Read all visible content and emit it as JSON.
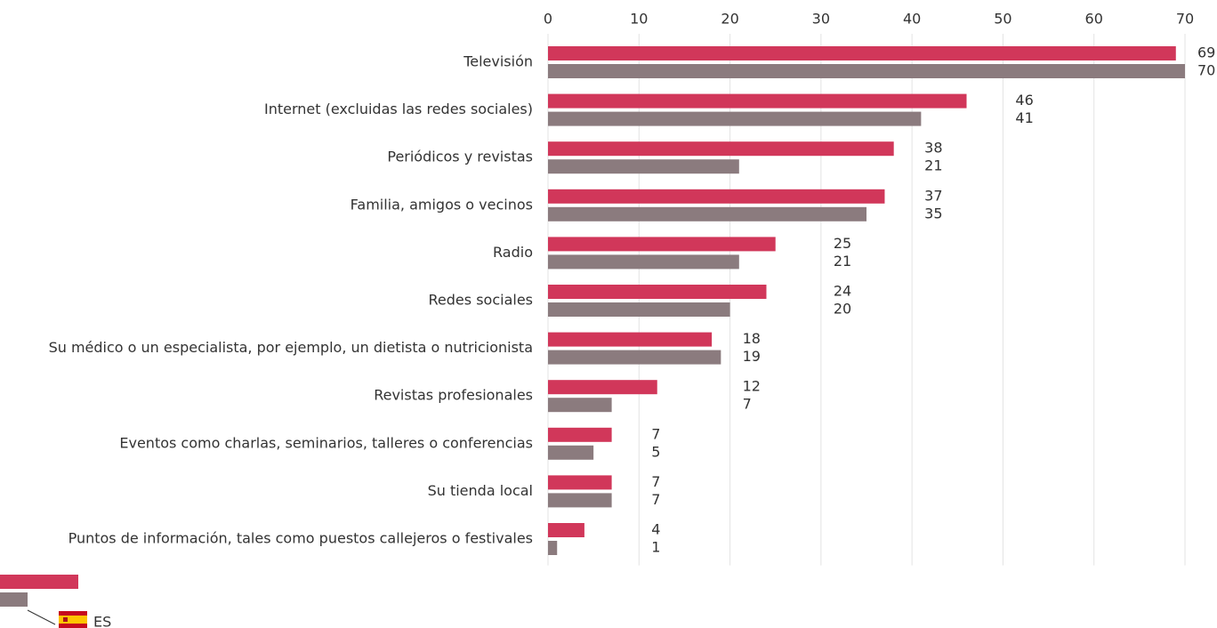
{
  "chart_data": {
    "type": "bar",
    "orientation": "horizontal",
    "categories": [
      "Televisión",
      "Internet (excluidas las redes sociales)",
      "Periódicos y revistas",
      "Familia, amigos o vecinos",
      "Radio",
      "Redes sociales",
      "Su médico o un especialista, por ejemplo, un dietista o nutricionista",
      "Revistas profesionales",
      "Eventos como charlas, seminarios, talleres o conferencias",
      "Su tienda local",
      "Puntos de información, tales como puestos callejeros o festivales"
    ],
    "series": [
      {
        "color": "#d1375a",
        "values": [
          69,
          46,
          38,
          37,
          25,
          24,
          18,
          12,
          7,
          7,
          4
        ]
      },
      {
        "color": "#8b7b7e",
        "values": [
          70,
          41,
          21,
          35,
          21,
          20,
          19,
          7,
          5,
          7,
          1
        ]
      }
    ],
    "xlim": [
      0,
      70
    ],
    "xticks": [
      0,
      10,
      20,
      30,
      40,
      50,
      60,
      70
    ],
    "grid": true,
    "legend_label": "ES"
  }
}
